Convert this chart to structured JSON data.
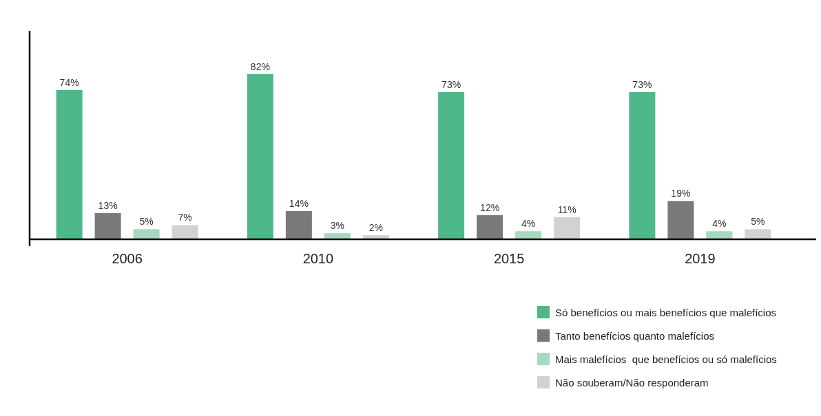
{
  "chart_data": {
    "type": "bar",
    "categories": [
      "2006",
      "2010",
      "2015",
      "2019"
    ],
    "series": [
      {
        "name": "Só benefícios ou mais benefícios que malefícios",
        "color": "#4fb88a",
        "values": [
          74,
          82,
          73,
          73
        ],
        "value_labels": [
          "74%",
          "82%",
          "73%",
          "73%"
        ]
      },
      {
        "name": "Tanto benefícios quanto malefícios",
        "color": "#7a7a7a",
        "values": [
          13,
          14,
          12,
          19
        ],
        "value_labels": [
          "13%",
          "14%",
          "12%",
          "19%"
        ]
      },
      {
        "name": "Mais malefícios  que benefícios ou só malefícios",
        "color": "#a8d8c0",
        "values": [
          5,
          3,
          4,
          4
        ],
        "value_labels": [
          "5%",
          "3%",
          "4%",
          "4%"
        ]
      },
      {
        "name": "Não souberam/Não responderam",
        "color": "#d2d2d2",
        "values": [
          7,
          2,
          11,
          5
        ],
        "value_labels": [
          "7%",
          "2%",
          "11%",
          "5%"
        ]
      }
    ],
    "legend": "bottom right",
    "tick_labels": "x"
  }
}
